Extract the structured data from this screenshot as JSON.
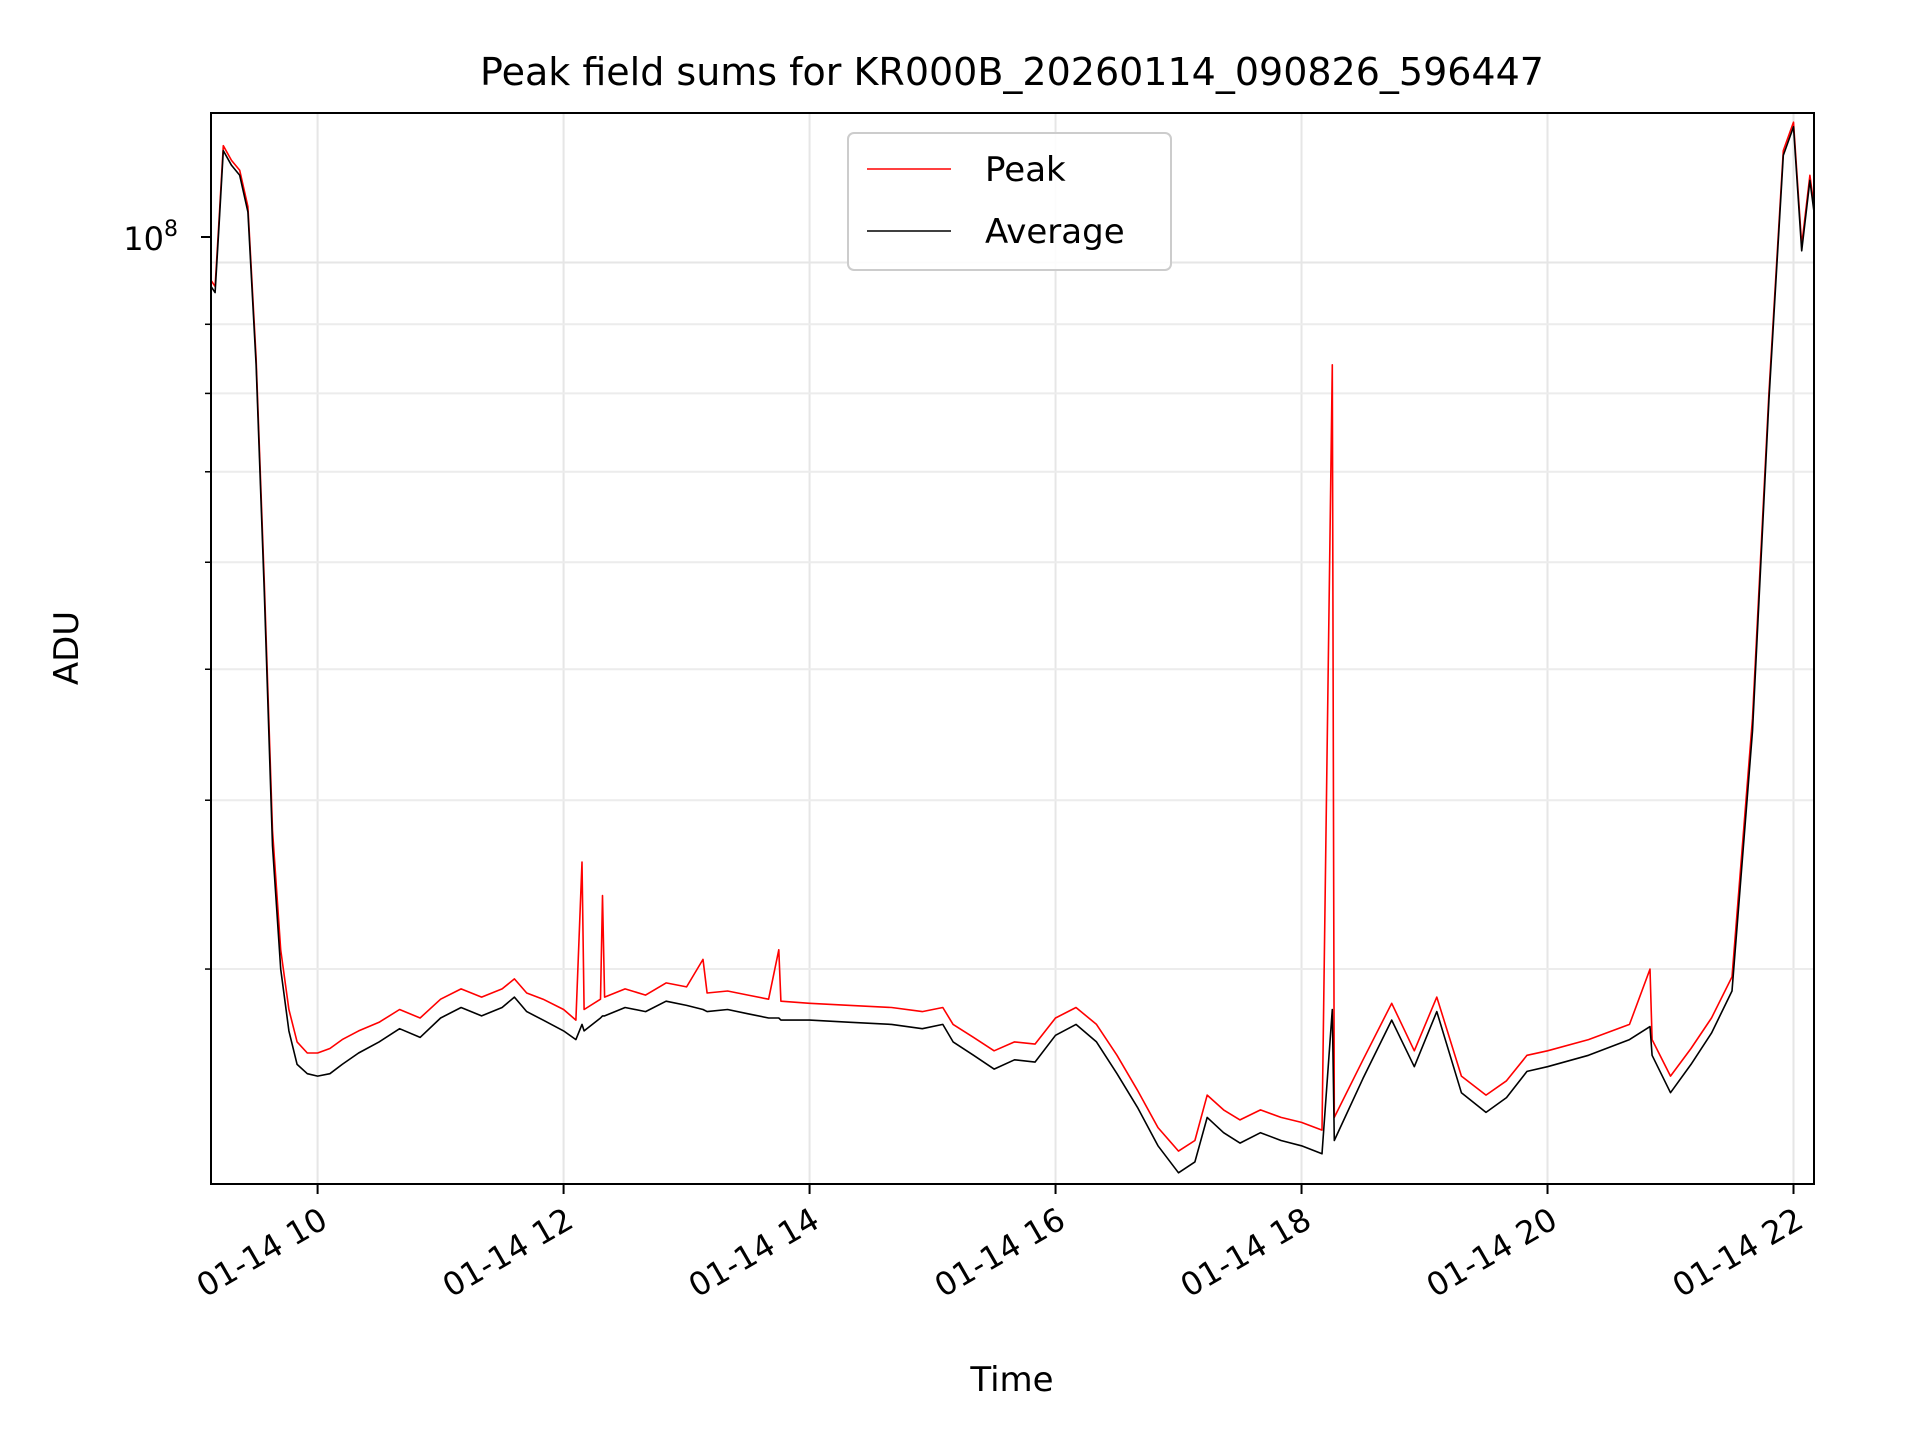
{
  "chart_data": {
    "type": "line",
    "title": "Peak field sums for KR000B_20260114_090826_596447",
    "xlabel": "Time",
    "ylabel": "ADU",
    "y_scale": "log",
    "grid": "major and minor",
    "legend_placement": "top-center",
    "xlim": [
      "2026-01-14 09:08",
      "2026-01-14 22:10"
    ],
    "ylim": [
      20800000,
      129000000
    ],
    "x_tick_labels": [
      "01-14 10",
      "01-14 12",
      "01-14 14",
      "01-14 16",
      "01-14 18",
      "01-14 20",
      "01-14 22"
    ],
    "x_tick_times": [
      "2026-01-14 10:00",
      "2026-01-14 12:00",
      "2026-01-14 14:00",
      "2026-01-14 16:00",
      "2026-01-14 18:00",
      "2026-01-14 20:00",
      "2026-01-14 22:00"
    ],
    "y_tick_label_base": "10",
    "y_tick_label_exp": "8",
    "y_tick_value": 100000000,
    "series": [
      {
        "name": "Peak",
        "color": "#ff0000",
        "points": [
          [
            "2026-01-14 09:08",
            97000000
          ],
          [
            "2026-01-14 09:10",
            96000000
          ],
          [
            "2026-01-14 09:12",
            108000000
          ],
          [
            "2026-01-14 09:14",
            122000000
          ],
          [
            "2026-01-14 09:18",
            119000000
          ],
          [
            "2026-01-14 09:22",
            117000000
          ],
          [
            "2026-01-14 09:26",
            110000000
          ],
          [
            "2026-01-14 09:30",
            85000000
          ],
          [
            "2026-01-14 09:34",
            58000000
          ],
          [
            "2026-01-14 09:38",
            38000000
          ],
          [
            "2026-01-14 09:42",
            31000000
          ],
          [
            "2026-01-14 09:46",
            28000000
          ],
          [
            "2026-01-14 09:50",
            26500000
          ],
          [
            "2026-01-14 09:55",
            26000000
          ],
          [
            "2026-01-14 10:00",
            26000000
          ],
          [
            "2026-01-14 10:06",
            26200000
          ],
          [
            "2026-01-14 10:12",
            26600000
          ],
          [
            "2026-01-14 10:20",
            27000000
          ],
          [
            "2026-01-14 10:30",
            27400000
          ],
          [
            "2026-01-14 10:40",
            28000000
          ],
          [
            "2026-01-14 10:50",
            27600000
          ],
          [
            "2026-01-14 11:00",
            28500000
          ],
          [
            "2026-01-14 11:10",
            29000000
          ],
          [
            "2026-01-14 11:20",
            28600000
          ],
          [
            "2026-01-14 11:30",
            29000000
          ],
          [
            "2026-01-14 11:36",
            29500000
          ],
          [
            "2026-01-14 11:42",
            28800000
          ],
          [
            "2026-01-14 11:50",
            28500000
          ],
          [
            "2026-01-14 12:00",
            28000000
          ],
          [
            "2026-01-14 12:06",
            27500000
          ],
          [
            "2026-01-14 12:09",
            36000000
          ],
          [
            "2026-01-14 12:10",
            28000000
          ],
          [
            "2026-01-14 12:18",
            28500000
          ],
          [
            "2026-01-14 12:19",
            34000000
          ],
          [
            "2026-01-14 12:20",
            28600000
          ],
          [
            "2026-01-14 12:30",
            29000000
          ],
          [
            "2026-01-14 12:40",
            28700000
          ],
          [
            "2026-01-14 12:50",
            29300000
          ],
          [
            "2026-01-14 13:00",
            29100000
          ],
          [
            "2026-01-14 13:08",
            30500000
          ],
          [
            "2026-01-14 13:10",
            28800000
          ],
          [
            "2026-01-14 13:20",
            28900000
          ],
          [
            "2026-01-14 13:30",
            28700000
          ],
          [
            "2026-01-14 13:40",
            28500000
          ],
          [
            "2026-01-14 13:45",
            31000000
          ],
          [
            "2026-01-14 13:46",
            28400000
          ],
          [
            "2026-01-14 14:00",
            28300000
          ],
          [
            "2026-01-14 14:20",
            28200000
          ],
          [
            "2026-01-14 14:40",
            28100000
          ],
          [
            "2026-01-14 14:55",
            27900000
          ],
          [
            "2026-01-14 15:05",
            28100000
          ],
          [
            "2026-01-14 15:10",
            27300000
          ],
          [
            "2026-01-14 15:20",
            26700000
          ],
          [
            "2026-01-14 15:30",
            26100000
          ],
          [
            "2026-01-14 15:40",
            26500000
          ],
          [
            "2026-01-14 15:50",
            26400000
          ],
          [
            "2026-01-14 16:00",
            27600000
          ],
          [
            "2026-01-14 16:10",
            28100000
          ],
          [
            "2026-01-14 16:20",
            27300000
          ],
          [
            "2026-01-14 16:30",
            25900000
          ],
          [
            "2026-01-14 16:40",
            24400000
          ],
          [
            "2026-01-14 16:50",
            22900000
          ],
          [
            "2026-01-14 17:00",
            22000000
          ],
          [
            "2026-01-14 17:08",
            22400000
          ],
          [
            "2026-01-14 17:14",
            24200000
          ],
          [
            "2026-01-14 17:22",
            23600000
          ],
          [
            "2026-01-14 17:30",
            23200000
          ],
          [
            "2026-01-14 17:40",
            23600000
          ],
          [
            "2026-01-14 17:50",
            23300000
          ],
          [
            "2026-01-14 18:00",
            23100000
          ],
          [
            "2026-01-14 18:10",
            22800000
          ],
          [
            "2026-01-14 18:15",
            84000000
          ],
          [
            "2026-01-14 18:16",
            23300000
          ],
          [
            "2026-01-14 18:30",
            25700000
          ],
          [
            "2026-01-14 18:44",
            28300000
          ],
          [
            "2026-01-14 18:55",
            26100000
          ],
          [
            "2026-01-14 19:06",
            28600000
          ],
          [
            "2026-01-14 19:18",
            25000000
          ],
          [
            "2026-01-14 19:30",
            24200000
          ],
          [
            "2026-01-14 19:40",
            24800000
          ],
          [
            "2026-01-14 19:50",
            25900000
          ],
          [
            "2026-01-14 20:00",
            26100000
          ],
          [
            "2026-01-14 20:20",
            26600000
          ],
          [
            "2026-01-14 20:40",
            27300000
          ],
          [
            "2026-01-14 20:50",
            30000000
          ],
          [
            "2026-01-14 20:51",
            26600000
          ],
          [
            "2026-01-14 21:00",
            25000000
          ],
          [
            "2026-01-14 21:10",
            26200000
          ],
          [
            "2026-01-14 21:20",
            27600000
          ],
          [
            "2026-01-14 21:30",
            29600000
          ],
          [
            "2026-01-14 21:40",
            46000000
          ],
          [
            "2026-01-14 21:48",
            80000000
          ],
          [
            "2026-01-14 21:55",
            121000000
          ],
          [
            "2026-01-14 22:00",
            127000000
          ],
          [
            "2026-01-14 22:04",
            103000000
          ],
          [
            "2026-01-14 22:08",
            116000000
          ],
          [
            "2026-01-14 22:10",
            110000000
          ]
        ]
      },
      {
        "name": "Average",
        "color": "#000000",
        "points": [
          [
            "2026-01-14 09:08",
            96000000
          ],
          [
            "2026-01-14 09:10",
            95000000
          ],
          [
            "2026-01-14 09:12",
            107000000
          ],
          [
            "2026-01-14 09:14",
            121000000
          ],
          [
            "2026-01-14 09:18",
            118000000
          ],
          [
            "2026-01-14 09:22",
            116000000
          ],
          [
            "2026-01-14 09:26",
            109000000
          ],
          [
            "2026-01-14 09:30",
            84000000
          ],
          [
            "2026-01-14 09:34",
            57000000
          ],
          [
            "2026-01-14 09:38",
            37000000
          ],
          [
            "2026-01-14 09:42",
            30000000
          ],
          [
            "2026-01-14 09:46",
            27000000
          ],
          [
            "2026-01-14 09:50",
            25500000
          ],
          [
            "2026-01-14 09:55",
            25100000
          ],
          [
            "2026-01-14 10:00",
            25000000
          ],
          [
            "2026-01-14 10:06",
            25100000
          ],
          [
            "2026-01-14 10:12",
            25500000
          ],
          [
            "2026-01-14 10:20",
            26000000
          ],
          [
            "2026-01-14 10:30",
            26500000
          ],
          [
            "2026-01-14 10:40",
            27100000
          ],
          [
            "2026-01-14 10:50",
            26700000
          ],
          [
            "2026-01-14 11:00",
            27600000
          ],
          [
            "2026-01-14 11:10",
            28100000
          ],
          [
            "2026-01-14 11:20",
            27700000
          ],
          [
            "2026-01-14 11:30",
            28100000
          ],
          [
            "2026-01-14 11:36",
            28600000
          ],
          [
            "2026-01-14 11:42",
            27900000
          ],
          [
            "2026-01-14 11:50",
            27500000
          ],
          [
            "2026-01-14 12:00",
            27000000
          ],
          [
            "2026-01-14 12:06",
            26600000
          ],
          [
            "2026-01-14 12:09",
            27300000
          ],
          [
            "2026-01-14 12:10",
            27000000
          ],
          [
            "2026-01-14 12:18",
            27600000
          ],
          [
            "2026-01-14 12:19",
            27700000
          ],
          [
            "2026-01-14 12:20",
            27700000
          ],
          [
            "2026-01-14 12:30",
            28100000
          ],
          [
            "2026-01-14 12:40",
            27900000
          ],
          [
            "2026-01-14 12:50",
            28400000
          ],
          [
            "2026-01-14 13:00",
            28200000
          ],
          [
            "2026-01-14 13:08",
            28000000
          ],
          [
            "2026-01-14 13:10",
            27900000
          ],
          [
            "2026-01-14 13:20",
            28000000
          ],
          [
            "2026-01-14 13:30",
            27800000
          ],
          [
            "2026-01-14 13:40",
            27600000
          ],
          [
            "2026-01-14 13:45",
            27600000
          ],
          [
            "2026-01-14 13:46",
            27500000
          ],
          [
            "2026-01-14 14:00",
            27500000
          ],
          [
            "2026-01-14 14:20",
            27400000
          ],
          [
            "2026-01-14 14:40",
            27300000
          ],
          [
            "2026-01-14 14:55",
            27100000
          ],
          [
            "2026-01-14 15:05",
            27300000
          ],
          [
            "2026-01-14 15:10",
            26500000
          ],
          [
            "2026-01-14 15:20",
            25900000
          ],
          [
            "2026-01-14 15:30",
            25300000
          ],
          [
            "2026-01-14 15:40",
            25700000
          ],
          [
            "2026-01-14 15:50",
            25600000
          ],
          [
            "2026-01-14 16:00",
            26800000
          ],
          [
            "2026-01-14 16:10",
            27300000
          ],
          [
            "2026-01-14 16:20",
            26500000
          ],
          [
            "2026-01-14 16:30",
            25100000
          ],
          [
            "2026-01-14 16:40",
            23700000
          ],
          [
            "2026-01-14 16:50",
            22200000
          ],
          [
            "2026-01-14 17:00",
            21200000
          ],
          [
            "2026-01-14 17:08",
            21600000
          ],
          [
            "2026-01-14 17:14",
            23300000
          ],
          [
            "2026-01-14 17:22",
            22700000
          ],
          [
            "2026-01-14 17:30",
            22300000
          ],
          [
            "2026-01-14 17:40",
            22700000
          ],
          [
            "2026-01-14 17:50",
            22400000
          ],
          [
            "2026-01-14 18:00",
            22200000
          ],
          [
            "2026-01-14 18:10",
            21900000
          ],
          [
            "2026-01-14 18:15",
            28000000
          ],
          [
            "2026-01-14 18:16",
            22400000
          ],
          [
            "2026-01-14 18:30",
            24900000
          ],
          [
            "2026-01-14 18:44",
            27500000
          ],
          [
            "2026-01-14 18:55",
            25400000
          ],
          [
            "2026-01-14 19:06",
            27900000
          ],
          [
            "2026-01-14 19:18",
            24300000
          ],
          [
            "2026-01-14 19:30",
            23500000
          ],
          [
            "2026-01-14 19:40",
            24100000
          ],
          [
            "2026-01-14 19:50",
            25200000
          ],
          [
            "2026-01-14 20:00",
            25400000
          ],
          [
            "2026-01-14 20:20",
            25900000
          ],
          [
            "2026-01-14 20:40",
            26600000
          ],
          [
            "2026-01-14 20:50",
            27200000
          ],
          [
            "2026-01-14 20:51",
            25900000
          ],
          [
            "2026-01-14 21:00",
            24300000
          ],
          [
            "2026-01-14 21:10",
            25500000
          ],
          [
            "2026-01-14 21:20",
            26900000
          ],
          [
            "2026-01-14 21:30",
            28900000
          ],
          [
            "2026-01-14 21:40",
            45000000
          ],
          [
            "2026-01-14 21:48",
            79000000
          ],
          [
            "2026-01-14 21:55",
            120000000
          ],
          [
            "2026-01-14 22:00",
            126000000
          ],
          [
            "2026-01-14 22:04",
            102000000
          ],
          [
            "2026-01-14 22:08",
            115000000
          ],
          [
            "2026-01-14 22:10",
            109000000
          ]
        ]
      }
    ]
  }
}
